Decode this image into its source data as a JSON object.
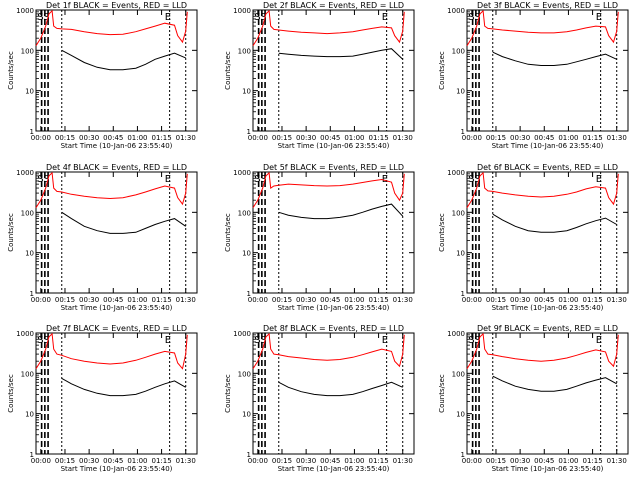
{
  "chart_data": [
    {
      "type": "line",
      "title": "Det 1f BLACK = Events, RED = LLD",
      "xlabel": "Start Time (10-Jan-06 23:55:40)",
      "ylabel": "Counts/sec",
      "yscale": "log",
      "ylim": [
        1,
        1000
      ],
      "x_ticks": [
        "00:00",
        "00:15",
        "00:30",
        "00:45",
        "01:00",
        "01:15",
        "01:30"
      ],
      "y_ticks": [
        "1",
        "10",
        "100",
        "1000"
      ],
      "markers": [
        "S",
        "S",
        "E"
      ],
      "series": [
        {
          "name": "Events",
          "color": "#000000",
          "x": [
            16,
            22,
            30,
            38,
            46,
            54,
            62,
            68,
            74,
            80,
            86,
            93
          ],
          "y": [
            100,
            75,
            50,
            38,
            33,
            33,
            36,
            45,
            60,
            72,
            85,
            65
          ]
        },
        {
          "name": "LLD",
          "color": "#ff0000",
          "x": [
            0,
            3,
            6,
            8,
            10,
            11,
            13,
            16,
            22,
            30,
            38,
            46,
            54,
            62,
            68,
            74,
            80,
            86,
            88,
            91,
            93,
            94
          ],
          "y": [
            130,
            200,
            400,
            800,
            950,
            400,
            350,
            340,
            330,
            290,
            260,
            245,
            250,
            290,
            340,
            400,
            470,
            420,
            230,
            160,
            300,
            900
          ]
        }
      ]
    },
    {
      "type": "line",
      "title": "Det 2f BLACK = Events, RED = LLD",
      "xlabel": "Start Time (10-Jan-06 23:55:40)",
      "ylabel": "Counts/sec",
      "yscale": "log",
      "ylim": [
        1,
        1000
      ],
      "x_ticks": [
        "00:00",
        "00:15",
        "00:30",
        "00:45",
        "01:00",
        "01:15",
        "01:30"
      ],
      "y_ticks": [
        "1",
        "10",
        "100",
        "1000"
      ],
      "markers": [
        "S",
        "S",
        "E"
      ],
      "series": [
        {
          "name": "Events",
          "color": "#000000",
          "x": [
            16,
            22,
            30,
            38,
            46,
            54,
            62,
            68,
            74,
            80,
            86,
            93
          ],
          "y": [
            85,
            80,
            75,
            72,
            70,
            70,
            72,
            80,
            90,
            100,
            110,
            60
          ]
        },
        {
          "name": "LLD",
          "color": "#ff0000",
          "x": [
            0,
            3,
            6,
            8,
            10,
            11,
            13,
            16,
            22,
            30,
            38,
            46,
            54,
            62,
            68,
            74,
            80,
            86,
            88,
            91,
            93,
            94
          ],
          "y": [
            130,
            200,
            400,
            800,
            950,
            400,
            330,
            320,
            300,
            280,
            270,
            260,
            270,
            290,
            320,
            350,
            380,
            360,
            230,
            160,
            300,
            900
          ]
        }
      ]
    },
    {
      "type": "line",
      "title": "Det 3f BLACK = Events, RED = LLD",
      "xlabel": "Start Time (10-Jan-06 23:55:40)",
      "ylabel": "Counts/sec",
      "yscale": "log",
      "ylim": [
        1,
        1000
      ],
      "x_ticks": [
        "00:00",
        "00:15",
        "00:30",
        "00:45",
        "01:00",
        "01:15",
        "01:30"
      ],
      "y_ticks": [
        "1",
        "10",
        "100",
        "1000"
      ],
      "markers": [
        "S",
        "S",
        "E"
      ],
      "series": [
        {
          "name": "Events",
          "color": "#000000",
          "x": [
            16,
            22,
            30,
            38,
            46,
            54,
            62,
            68,
            74,
            80,
            86,
            93
          ],
          "y": [
            90,
            70,
            55,
            45,
            42,
            42,
            45,
            52,
            60,
            70,
            80,
            60
          ]
        },
        {
          "name": "LLD",
          "color": "#ff0000",
          "x": [
            0,
            3,
            6,
            8,
            10,
            11,
            13,
            16,
            22,
            30,
            38,
            46,
            54,
            62,
            68,
            74,
            80,
            86,
            88,
            91,
            93,
            94
          ],
          "y": [
            130,
            200,
            400,
            800,
            950,
            400,
            350,
            340,
            320,
            300,
            280,
            270,
            270,
            290,
            320,
            360,
            400,
            380,
            230,
            160,
            300,
            900
          ]
        }
      ]
    },
    {
      "type": "line",
      "title": "Det 4f BLACK = Events, RED = LLD",
      "xlabel": "Start Time (10-Jan-06 23:55:40)",
      "ylabel": "Counts/sec",
      "yscale": "log",
      "ylim": [
        1,
        1000
      ],
      "x_ticks": [
        "00:00",
        "00:15",
        "00:30",
        "00:45",
        "01:00",
        "01:15",
        "01:30"
      ],
      "y_ticks": [
        "1",
        "10",
        "100",
        "1000"
      ],
      "markers": [
        "S",
        "S",
        "E"
      ],
      "series": [
        {
          "name": "Events",
          "color": "#000000",
          "x": [
            16,
            22,
            30,
            38,
            46,
            54,
            62,
            68,
            74,
            80,
            86,
            93
          ],
          "y": [
            100,
            70,
            45,
            35,
            30,
            30,
            32,
            40,
            50,
            60,
            70,
            45
          ]
        },
        {
          "name": "LLD",
          "color": "#ff0000",
          "x": [
            0,
            3,
            6,
            8,
            10,
            11,
            13,
            16,
            22,
            30,
            38,
            46,
            54,
            62,
            68,
            74,
            80,
            86,
            88,
            91,
            93,
            94
          ],
          "y": [
            130,
            200,
            400,
            800,
            950,
            400,
            330,
            320,
            280,
            250,
            230,
            220,
            230,
            270,
            320,
            380,
            450,
            400,
            230,
            160,
            300,
            900
          ]
        }
      ]
    },
    {
      "type": "line",
      "title": "Det 5f BLACK = Events, RED = LLD",
      "xlabel": "Start Time (10-Jan-06 23:55:40)",
      "ylabel": "Counts/sec",
      "yscale": "log",
      "ylim": [
        1,
        1000
      ],
      "x_ticks": [
        "00:00",
        "00:15",
        "00:30",
        "00:45",
        "01:00",
        "01:15",
        "01:30"
      ],
      "y_ticks": [
        "1",
        "10",
        "100",
        "1000"
      ],
      "markers": [
        "S",
        "S",
        "E"
      ],
      "series": [
        {
          "name": "Events",
          "color": "#000000",
          "x": [
            16,
            22,
            30,
            38,
            46,
            54,
            62,
            68,
            74,
            80,
            86,
            93
          ],
          "y": [
            100,
            85,
            75,
            70,
            70,
            75,
            85,
            100,
            120,
            140,
            160,
            80
          ]
        },
        {
          "name": "LLD",
          "color": "#ff0000",
          "x": [
            0,
            3,
            6,
            8,
            10,
            11,
            13,
            16,
            22,
            30,
            38,
            46,
            54,
            62,
            68,
            74,
            80,
            86,
            88,
            91,
            93,
            94
          ],
          "y": [
            130,
            200,
            400,
            800,
            950,
            400,
            450,
            470,
            500,
            480,
            460,
            450,
            460,
            500,
            550,
            600,
            650,
            560,
            300,
            200,
            300,
            900
          ]
        }
      ]
    },
    {
      "type": "line",
      "title": "Det 6f BLACK = Events, RED = LLD",
      "xlabel": "Start Time (10-Jan-06 23:55:40)",
      "ylabel": "Counts/sec",
      "yscale": "log",
      "ylim": [
        1,
        1000
      ],
      "x_ticks": [
        "00:00",
        "00:15",
        "00:30",
        "00:45",
        "01:00",
        "01:15",
        "01:30"
      ],
      "y_ticks": [
        "1",
        "10",
        "100",
        "1000"
      ],
      "markers": [
        "S",
        "S",
        "E"
      ],
      "series": [
        {
          "name": "Events",
          "color": "#000000",
          "x": [
            16,
            22,
            30,
            38,
            46,
            54,
            62,
            68,
            74,
            80,
            86,
            93
          ],
          "y": [
            90,
            65,
            45,
            35,
            32,
            32,
            35,
            42,
            52,
            62,
            72,
            50
          ]
        },
        {
          "name": "LLD",
          "color": "#ff0000",
          "x": [
            0,
            3,
            6,
            8,
            10,
            11,
            13,
            16,
            22,
            30,
            38,
            46,
            54,
            62,
            68,
            74,
            80,
            86,
            88,
            91,
            93,
            94
          ],
          "y": [
            130,
            200,
            400,
            800,
            950,
            400,
            340,
            330,
            300,
            270,
            250,
            240,
            250,
            280,
            320,
            380,
            430,
            400,
            230,
            160,
            300,
            900
          ]
        }
      ]
    },
    {
      "type": "line",
      "title": "Det 7f BLACK = Events, RED = LLD",
      "xlabel": "Start Time (10-Jan-06 23:55:40)",
      "ylabel": "Counts/sec",
      "yscale": "log",
      "ylim": [
        1,
        1000
      ],
      "x_ticks": [
        "00:00",
        "00:15",
        "00:30",
        "00:45",
        "01:00",
        "01:15",
        "01:30"
      ],
      "y_ticks": [
        "1",
        "10",
        "100",
        "1000"
      ],
      "markers": [
        "S",
        "S",
        "E"
      ],
      "series": [
        {
          "name": "Events",
          "color": "#000000",
          "x": [
            16,
            22,
            30,
            38,
            46,
            54,
            62,
            68,
            74,
            80,
            86,
            93
          ],
          "y": [
            75,
            55,
            40,
            32,
            28,
            28,
            30,
            36,
            45,
            55,
            65,
            45
          ]
        },
        {
          "name": "LLD",
          "color": "#ff0000",
          "x": [
            0,
            3,
            6,
            8,
            10,
            11,
            13,
            16,
            22,
            30,
            38,
            46,
            54,
            62,
            68,
            74,
            80,
            86,
            88,
            91,
            93,
            94
          ],
          "y": [
            130,
            200,
            400,
            800,
            950,
            400,
            300,
            280,
            230,
            200,
            180,
            170,
            180,
            210,
            250,
            300,
            350,
            320,
            180,
            130,
            300,
            900
          ]
        }
      ]
    },
    {
      "type": "line",
      "title": "Det 8f BLACK = Events, RED = LLD",
      "xlabel": "Start Time (10-Jan-06 23:55:40)",
      "ylabel": "Counts/sec",
      "yscale": "log",
      "ylim": [
        1,
        1000
      ],
      "x_ticks": [
        "00:00",
        "00:15",
        "00:30",
        "00:45",
        "01:00",
        "01:15",
        "01:30"
      ],
      "y_ticks": [
        "1",
        "10",
        "100",
        "1000"
      ],
      "markers": [
        "S",
        "S",
        "E"
      ],
      "series": [
        {
          "name": "Events",
          "color": "#000000",
          "x": [
            16,
            22,
            30,
            38,
            46,
            54,
            62,
            68,
            74,
            80,
            86,
            93
          ],
          "y": [
            60,
            45,
            35,
            30,
            28,
            28,
            30,
            35,
            42,
            50,
            60,
            45
          ]
        },
        {
          "name": "LLD",
          "color": "#ff0000",
          "x": [
            0,
            3,
            6,
            8,
            10,
            11,
            13,
            16,
            22,
            30,
            38,
            46,
            54,
            62,
            68,
            74,
            80,
            86,
            88,
            91,
            93,
            94
          ],
          "y": [
            130,
            200,
            400,
            800,
            950,
            400,
            300,
            290,
            260,
            240,
            220,
            210,
            220,
            250,
            290,
            340,
            400,
            350,
            200,
            150,
            300,
            900
          ]
        }
      ]
    },
    {
      "type": "line",
      "title": "Det 9f BLACK = Events, RED = LLD",
      "xlabel": "Start Time (10-Jan-06 23:55:40)",
      "ylabel": "Counts/sec",
      "yscale": "log",
      "ylim": [
        1,
        1000
      ],
      "x_ticks": [
        "00:00",
        "00:15",
        "00:30",
        "00:45",
        "01:00",
        "01:15",
        "01:30"
      ],
      "y_ticks": [
        "1",
        "10",
        "100",
        "1000"
      ],
      "markers": [
        "S",
        "S",
        "E"
      ],
      "series": [
        {
          "name": "Events",
          "color": "#000000",
          "x": [
            16,
            22,
            30,
            38,
            46,
            54,
            62,
            68,
            74,
            80,
            86,
            93
          ],
          "y": [
            85,
            65,
            48,
            40,
            36,
            36,
            40,
            48,
            58,
            68,
            78,
            55
          ]
        },
        {
          "name": "LLD",
          "color": "#ff0000",
          "x": [
            0,
            3,
            6,
            8,
            10,
            11,
            13,
            16,
            22,
            30,
            38,
            46,
            54,
            62,
            68,
            74,
            80,
            86,
            88,
            91,
            93,
            94
          ],
          "y": [
            130,
            200,
            400,
            800,
            950,
            400,
            300,
            290,
            260,
            230,
            210,
            200,
            210,
            240,
            280,
            330,
            380,
            340,
            200,
            150,
            300,
            900
          ]
        }
      ]
    }
  ]
}
